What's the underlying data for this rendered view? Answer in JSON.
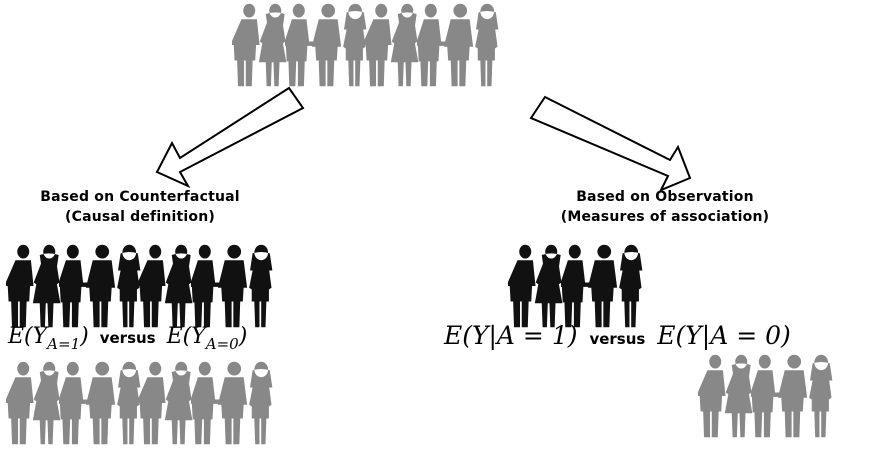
{
  "colors": {
    "exposed": "#111111",
    "unexposed": "#888888",
    "population": "#888888",
    "arrow_fill": "#ffffff",
    "arrow_stroke": "#000000"
  },
  "left": {
    "title_line1": "Based on Counterfactual",
    "title_line2": "(Causal definition)",
    "expr_left": "E(Y",
    "expr_left_sub": "A=1",
    "expr_left_close": ")",
    "versus": "versus",
    "expr_right": "E(Y",
    "expr_right_sub": "A=0",
    "expr_right_close": ")"
  },
  "right": {
    "title_line1": "Based on Observation",
    "title_line2": "(Measures of association)",
    "expr_left": "E(Y|A = 1)",
    "versus": "versus",
    "expr_right": "E(Y|A = 0)"
  },
  "icons": {
    "person": "person-silhouette-icon",
    "arrow": "hollow-arrow-icon"
  }
}
